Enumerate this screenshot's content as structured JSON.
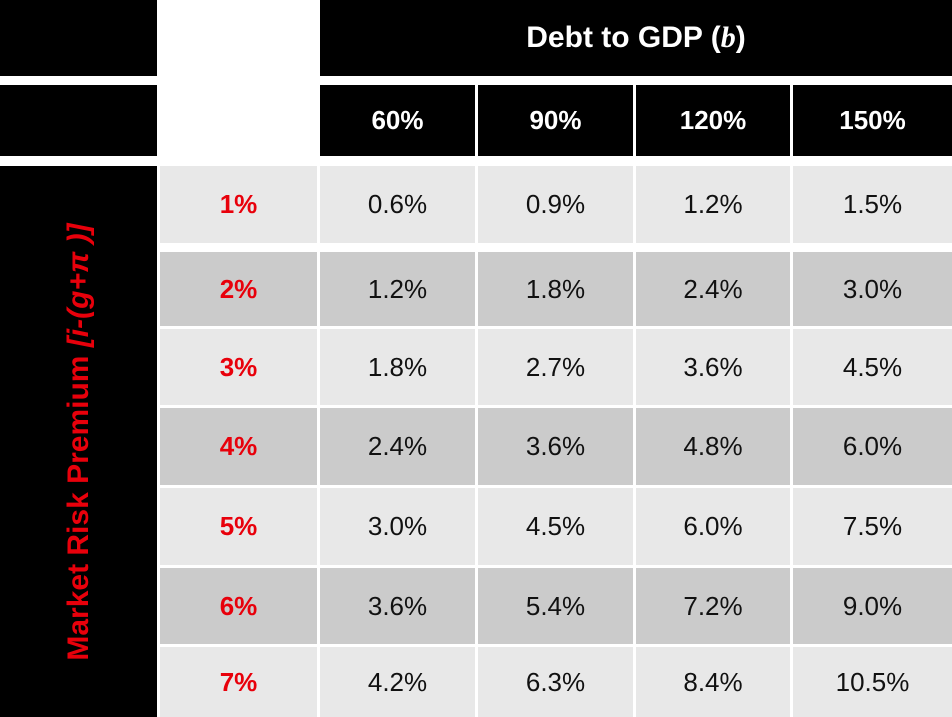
{
  "header": {
    "title_prefix": "Debt to GDP (",
    "title_var": "b",
    "title_suffix": ")"
  },
  "columns": [
    "60%",
    "90%",
    "120%",
    "150%"
  ],
  "side_label": {
    "text": "Market Risk Premium ",
    "formula": "[i-(g+π )]"
  },
  "rows": [
    {
      "label": "1%",
      "values": [
        "0.6%",
        "0.9%",
        "1.2%",
        "1.5%"
      ]
    },
    {
      "label": "2%",
      "values": [
        "1.2%",
        "1.8%",
        "2.4%",
        "3.0%"
      ]
    },
    {
      "label": "3%",
      "values": [
        "1.8%",
        "2.7%",
        "3.6%",
        "4.5%"
      ]
    },
    {
      "label": "4%",
      "values": [
        "2.4%",
        "3.6%",
        "4.8%",
        "6.0%"
      ]
    },
    {
      "label": "5%",
      "values": [
        "3.0%",
        "4.5%",
        "6.0%",
        "7.5%"
      ]
    },
    {
      "label": "6%",
      "values": [
        "3.6%",
        "5.4%",
        "7.2%",
        "9.0%"
      ]
    },
    {
      "label": "7%",
      "values": [
        "4.2%",
        "6.3%",
        "8.4%",
        "10.5%"
      ]
    }
  ],
  "colors": {
    "header_bg": "#000000",
    "header_text": "#ffffff",
    "accent_red": "#e8000b",
    "row_light": "#e8e8e8",
    "row_dark": "#cbcbcb"
  }
}
